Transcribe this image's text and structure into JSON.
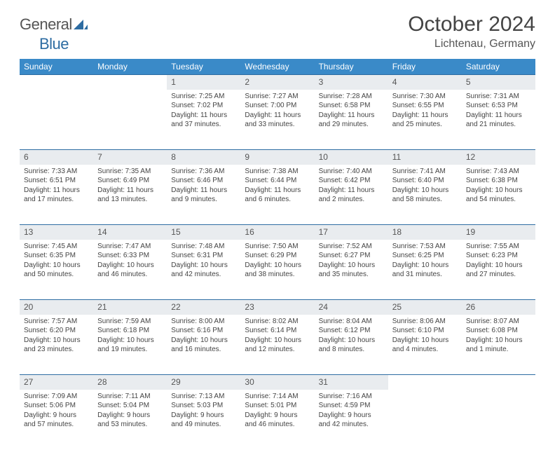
{
  "logo": {
    "part1": "General",
    "part2": "Blue"
  },
  "title": "October 2024",
  "location": "Lichtenau, Germany",
  "colors": {
    "header_bg": "#3a8ac8",
    "header_text": "#ffffff",
    "daynum_bg": "#e9ecef",
    "row_separator": "#2d6ca2",
    "body_text": "#444",
    "logo_general": "#555",
    "logo_blue": "#2d6ca2"
  },
  "fonts": {
    "title_size": 30,
    "location_size": 16,
    "th_size": 12,
    "cell_size": 10
  },
  "day_headers": [
    "Sunday",
    "Monday",
    "Tuesday",
    "Wednesday",
    "Thursday",
    "Friday",
    "Saturday"
  ],
  "weeks": [
    [
      null,
      null,
      {
        "n": "1",
        "sunrise": "7:25 AM",
        "sunset": "7:02 PM",
        "daylight": "11 hours and 37 minutes."
      },
      {
        "n": "2",
        "sunrise": "7:27 AM",
        "sunset": "7:00 PM",
        "daylight": "11 hours and 33 minutes."
      },
      {
        "n": "3",
        "sunrise": "7:28 AM",
        "sunset": "6:58 PM",
        "daylight": "11 hours and 29 minutes."
      },
      {
        "n": "4",
        "sunrise": "7:30 AM",
        "sunset": "6:55 PM",
        "daylight": "11 hours and 25 minutes."
      },
      {
        "n": "5",
        "sunrise": "7:31 AM",
        "sunset": "6:53 PM",
        "daylight": "11 hours and 21 minutes."
      }
    ],
    [
      {
        "n": "6",
        "sunrise": "7:33 AM",
        "sunset": "6:51 PM",
        "daylight": "11 hours and 17 minutes."
      },
      {
        "n": "7",
        "sunrise": "7:35 AM",
        "sunset": "6:49 PM",
        "daylight": "11 hours and 13 minutes."
      },
      {
        "n": "8",
        "sunrise": "7:36 AM",
        "sunset": "6:46 PM",
        "daylight": "11 hours and 9 minutes."
      },
      {
        "n": "9",
        "sunrise": "7:38 AM",
        "sunset": "6:44 PM",
        "daylight": "11 hours and 6 minutes."
      },
      {
        "n": "10",
        "sunrise": "7:40 AM",
        "sunset": "6:42 PM",
        "daylight": "11 hours and 2 minutes."
      },
      {
        "n": "11",
        "sunrise": "7:41 AM",
        "sunset": "6:40 PM",
        "daylight": "10 hours and 58 minutes."
      },
      {
        "n": "12",
        "sunrise": "7:43 AM",
        "sunset": "6:38 PM",
        "daylight": "10 hours and 54 minutes."
      }
    ],
    [
      {
        "n": "13",
        "sunrise": "7:45 AM",
        "sunset": "6:35 PM",
        "daylight": "10 hours and 50 minutes."
      },
      {
        "n": "14",
        "sunrise": "7:47 AM",
        "sunset": "6:33 PM",
        "daylight": "10 hours and 46 minutes."
      },
      {
        "n": "15",
        "sunrise": "7:48 AM",
        "sunset": "6:31 PM",
        "daylight": "10 hours and 42 minutes."
      },
      {
        "n": "16",
        "sunrise": "7:50 AM",
        "sunset": "6:29 PM",
        "daylight": "10 hours and 38 minutes."
      },
      {
        "n": "17",
        "sunrise": "7:52 AM",
        "sunset": "6:27 PM",
        "daylight": "10 hours and 35 minutes."
      },
      {
        "n": "18",
        "sunrise": "7:53 AM",
        "sunset": "6:25 PM",
        "daylight": "10 hours and 31 minutes."
      },
      {
        "n": "19",
        "sunrise": "7:55 AM",
        "sunset": "6:23 PM",
        "daylight": "10 hours and 27 minutes."
      }
    ],
    [
      {
        "n": "20",
        "sunrise": "7:57 AM",
        "sunset": "6:20 PM",
        "daylight": "10 hours and 23 minutes."
      },
      {
        "n": "21",
        "sunrise": "7:59 AM",
        "sunset": "6:18 PM",
        "daylight": "10 hours and 19 minutes."
      },
      {
        "n": "22",
        "sunrise": "8:00 AM",
        "sunset": "6:16 PM",
        "daylight": "10 hours and 16 minutes."
      },
      {
        "n": "23",
        "sunrise": "8:02 AM",
        "sunset": "6:14 PM",
        "daylight": "10 hours and 12 minutes."
      },
      {
        "n": "24",
        "sunrise": "8:04 AM",
        "sunset": "6:12 PM",
        "daylight": "10 hours and 8 minutes."
      },
      {
        "n": "25",
        "sunrise": "8:06 AM",
        "sunset": "6:10 PM",
        "daylight": "10 hours and 4 minutes."
      },
      {
        "n": "26",
        "sunrise": "8:07 AM",
        "sunset": "6:08 PM",
        "daylight": "10 hours and 1 minute."
      }
    ],
    [
      {
        "n": "27",
        "sunrise": "7:09 AM",
        "sunset": "5:06 PM",
        "daylight": "9 hours and 57 minutes."
      },
      {
        "n": "28",
        "sunrise": "7:11 AM",
        "sunset": "5:04 PM",
        "daylight": "9 hours and 53 minutes."
      },
      {
        "n": "29",
        "sunrise": "7:13 AM",
        "sunset": "5:03 PM",
        "daylight": "9 hours and 49 minutes."
      },
      {
        "n": "30",
        "sunrise": "7:14 AM",
        "sunset": "5:01 PM",
        "daylight": "9 hours and 46 minutes."
      },
      {
        "n": "31",
        "sunrise": "7:16 AM",
        "sunset": "4:59 PM",
        "daylight": "9 hours and 42 minutes."
      },
      null,
      null
    ]
  ]
}
